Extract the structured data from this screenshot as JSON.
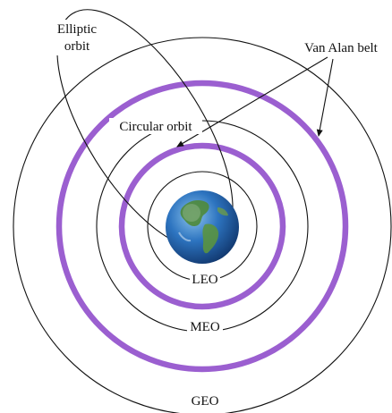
{
  "labels": {
    "elliptic_line1": "Elliptic",
    "elliptic_line2": "orbit",
    "van_alan_belt": "Van Alan belt",
    "circular_orbit": "Circular orbit",
    "leo": "LEO",
    "meo": "MEO",
    "geo": "GEO"
  },
  "colors": {
    "belt": "#9b5fd0",
    "orbit_line": "#111111",
    "ocean": "#1f5fae",
    "land": "#4f8a3a"
  },
  "icons": {
    "earth": "earth-globe-icon"
  }
}
